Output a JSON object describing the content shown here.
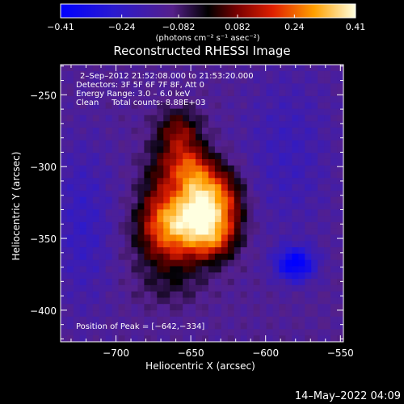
{
  "chart_data": {
    "type": "heatmap",
    "title": "Reconstructed RHESSI Image",
    "xlabel": "Heliocentric X (arcsec)",
    "ylabel": "Heliocentric Y (arcsec)",
    "xlim": [
      -737,
      -548
    ],
    "ylim": [
      -422,
      -229
    ],
    "xticks": [
      -700,
      -650,
      -600,
      -550
    ],
    "yticks": [
      -250,
      -300,
      -350,
      -400
    ],
    "xtick_labels": [
      "−700",
      "−650",
      "−600",
      "−550"
    ],
    "ytick_labels": [
      "−250",
      "−300",
      "−350",
      "−400"
    ],
    "colorbar": {
      "min": -0.41,
      "max": 0.41,
      "ticks": [
        -0.41,
        -0.24,
        -0.082,
        0.082,
        0.24,
        0.41
      ],
      "tick_labels": [
        "−0.41",
        "−0.24",
        "−0.082",
        "0.082",
        "0.24",
        "0.41"
      ],
      "units": "(photons cm⁻² s⁻¹ asec⁻²)"
    },
    "annotations": [
      "2–Sep–2012 21:52:08.000 to 21:53:20.000",
      "Detectors: 3F 5F 6F 7F 8F, Att 0",
      "Energy Range: 3.0 – 6.0 keV",
      "Clean     Total counts: 8.88E+03"
    ],
    "peak_text": "Position of Peak = [−642,−334]",
    "peak": [
      -642,
      -334
    ],
    "sources": [
      {
        "x": -646,
        "y": -336,
        "sx": 16,
        "sy": 14,
        "amp": 0.36
      },
      {
        "x": -640,
        "y": -318,
        "sx": 13,
        "sy": 13,
        "amp": 0.3
      },
      {
        "x": -652,
        "y": -300,
        "sx": 11,
        "sy": 11,
        "amp": 0.26
      },
      {
        "x": -658,
        "y": -276,
        "sx": 10,
        "sy": 11,
        "amp": 0.2
      },
      {
        "x": -668,
        "y": -340,
        "sx": 13,
        "sy": 14,
        "amp": 0.22
      },
      {
        "x": -660,
        "y": -360,
        "sx": 17,
        "sy": 13,
        "amp": 0.14
      },
      {
        "x": -636,
        "y": -350,
        "sx": 10,
        "sy": 10,
        "amp": 0.2
      },
      {
        "x": -672,
        "y": -310,
        "sx": 9,
        "sy": 17,
        "amp": 0.1
      },
      {
        "x": -625,
        "y": -330,
        "sx": 8,
        "sy": 18,
        "amp": 0.08
      },
      {
        "x": -665,
        "y": -385,
        "sx": 16,
        "sy": 10,
        "amp": 0.06
      },
      {
        "x": -580,
        "y": -368,
        "sx": 9,
        "sy": 8,
        "amp": -0.3
      },
      {
        "x": -722,
        "y": -340,
        "sx": 14,
        "sy": 40,
        "amp": -0.1
      },
      {
        "x": -585,
        "y": -290,
        "sx": 20,
        "sy": 40,
        "amp": -0.08
      }
    ]
  },
  "timestamp": "14–May–2022 04:09"
}
